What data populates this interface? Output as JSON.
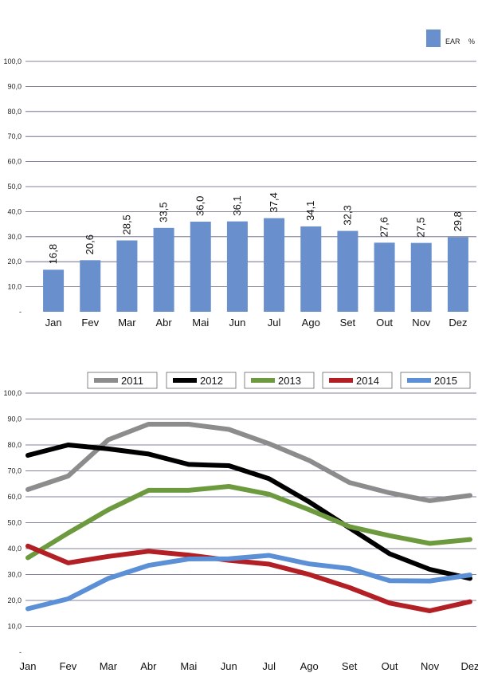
{
  "chart_data": [
    {
      "type": "bar",
      "categories": [
        "Jan",
        "Fev",
        "Mar",
        "Abr",
        "Mai",
        "Jun",
        "Jul",
        "Ago",
        "Set",
        "Out",
        "Nov",
        "Dez"
      ],
      "series": [
        {
          "name": "EAR",
          "values": [
            16.8,
            20.6,
            28.5,
            33.5,
            36.0,
            36.1,
            37.4,
            34.1,
            32.3,
            27.6,
            27.5,
            29.8
          ]
        }
      ],
      "data_labels": [
        "16,8",
        "20,6",
        "28,5",
        "33,5",
        "36,0",
        "36,1",
        "37,4",
        "34,1",
        "32,3",
        "27,6",
        "27,5",
        "29,8"
      ],
      "legend": {
        "label": "EAR",
        "unit": "%",
        "position": "top-right"
      },
      "yticks": [
        "-",
        "10,0",
        "20,0",
        "30,0",
        "40,0",
        "50,0",
        "60,0",
        "70,0",
        "80,0",
        "90,0",
        "100,0"
      ],
      "ylim": [
        0,
        100
      ],
      "grid": true,
      "colors": {
        "bar": "#6a8fcd",
        "grid": "#5a5a7a"
      }
    },
    {
      "type": "line",
      "categories": [
        "Jan",
        "Fev",
        "Mar",
        "Abr",
        "Mai",
        "Jun",
        "Jul",
        "Ago",
        "Set",
        "Out",
        "Nov",
        "Dez"
      ],
      "series": [
        {
          "name": "2011",
          "color": "#8c8c8c",
          "values": [
            62.8,
            68.0,
            82.0,
            88.0,
            88.0,
            86.0,
            80.5,
            74.0,
            65.5,
            61.5,
            58.5,
            60.5
          ]
        },
        {
          "name": "2012",
          "color": "#000000",
          "values": [
            76.0,
            80.0,
            78.5,
            76.5,
            72.5,
            72.0,
            67.0,
            58.0,
            48.0,
            38.0,
            32.0,
            28.5
          ]
        },
        {
          "name": "2013",
          "color": "#6d9a3e",
          "values": [
            36.5,
            46.0,
            55.0,
            62.5,
            62.5,
            64.0,
            61.0,
            55.0,
            48.5,
            45.0,
            42.0,
            43.5
          ]
        },
        {
          "name": "2014",
          "color": "#b21f24",
          "values": [
            41.0,
            34.5,
            37.0,
            39.0,
            37.5,
            35.5,
            34.0,
            30.0,
            25.0,
            19.0,
            16.0,
            19.5
          ]
        },
        {
          "name": "2015",
          "color": "#5b8fd6",
          "values": [
            16.8,
            20.6,
            28.5,
            33.5,
            36.0,
            36.1,
            37.4,
            34.1,
            32.3,
            27.6,
            27.5,
            29.8
          ]
        }
      ],
      "yticks": [
        "-",
        "10,0",
        "20,0",
        "30,0",
        "40,0",
        "50,0",
        "60,0",
        "70,0",
        "80,0",
        "90,0",
        "100,0"
      ],
      "ylim": [
        0,
        100
      ],
      "grid": true,
      "legend_position": "top"
    }
  ]
}
